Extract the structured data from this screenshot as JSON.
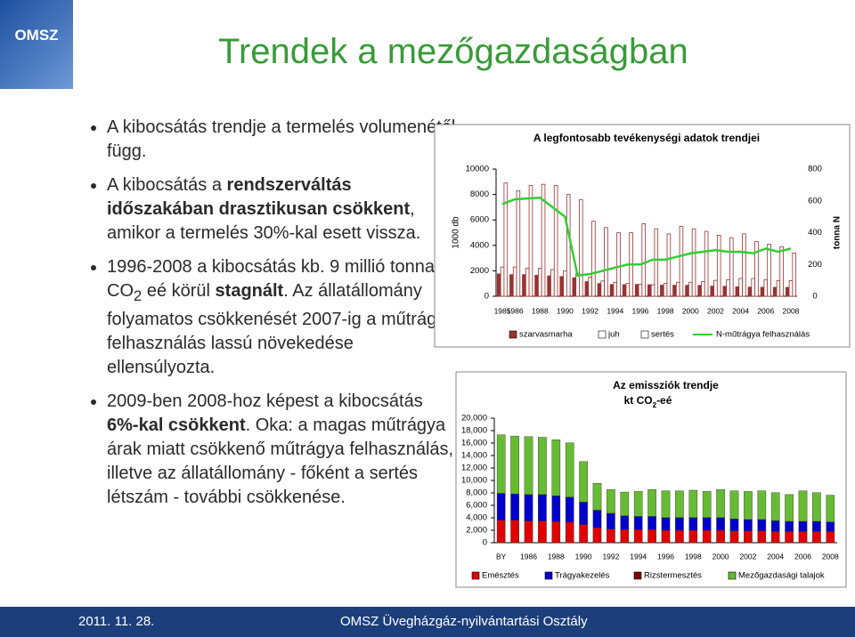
{
  "logo": "OMSZ",
  "title": "Trendek a mezőgazdaságban",
  "bullets": [
    [
      {
        "text": "A kibocsátás trendje a termelés volumenétől függ."
      }
    ],
    [
      {
        "text": "A kibocsátás a "
      },
      {
        "text": "rendszerváltás időszakában drasztikusan csökkent",
        "bold": true
      },
      {
        "text": ", amikor a termelés 30%-kal esett vissza."
      }
    ],
    [
      {
        "text": "1996-2008 a kibocsátás kb. 9 millió tonna CO"
      },
      {
        "text": "2",
        "sub": true
      },
      {
        "text": " eé körül "
      },
      {
        "text": "stagnált",
        "bold": true
      },
      {
        "text": ". Az állatállomány folyamatos csökkenését 2007-ig a műtrágya felhasználás lassú növekedése ellensúlyozta."
      }
    ],
    [
      {
        "text": "2009-ben 2008-hoz képest a kibocsátás "
      },
      {
        "text": "6%-kal csökkent",
        "bold": true
      },
      {
        "text": ". Oka: a magas műtrágya árak miatt csökkenő műtrágya felhasználás, illetve az állatállomány - főként a sertés létszám - további csökkenése."
      }
    ]
  ],
  "footer": {
    "date": "2011. 11. 28.",
    "org": "OMSZ Üvegházgáz-nyilvántartási Osztály"
  },
  "chart_data": [
    {
      "type": "bar",
      "title": "A legfontosabb tevékenységi adatok trendjei",
      "y_label": "1000 db",
      "y2_label": "tonna N",
      "categories": [
        "1985",
        "1986",
        null,
        "1988",
        null,
        "1990",
        null,
        "1992",
        null,
        "1994",
        null,
        "1996",
        null,
        "1998",
        null,
        "2000",
        null,
        "2002",
        null,
        "2004",
        null,
        "2006",
        null,
        "2008"
      ],
      "series": [
        {
          "name": "szarvasmarha",
          "color": "#993333",
          "values": [
            1750,
            1700,
            1700,
            1650,
            1600,
            1550,
            1450,
            1150,
            1000,
            920,
            910,
            930,
            910,
            870,
            870,
            860,
            850,
            800,
            780,
            740,
            720,
            710,
            700,
            700
          ]
        },
        {
          "name": "juh",
          "color": "#ffffff",
          "values": [
            2300,
            2300,
            2200,
            2200,
            2100,
            2000,
            1800,
            1500,
            1200,
            1100,
            1000,
            950,
            900,
            1000,
            1100,
            1100,
            1150,
            1250,
            1300,
            1400,
            1400,
            1300,
            1230,
            1230
          ]
        },
        {
          "name": "sertés",
          "color": "#ffffff",
          "values": [
            8900,
            8300,
            8700,
            8800,
            8700,
            8000,
            7600,
            5900,
            5400,
            5000,
            5000,
            5700,
            5300,
            4900,
            5500,
            5300,
            5100,
            4800,
            4600,
            4900,
            4300,
            4100,
            3900,
            3400
          ]
        },
        {
          "name": "N-műtrágya felhasználás",
          "color": "#33cc33",
          "axis": "y2",
          "values": [
            580,
            610,
            615,
            620,
            560,
            500,
            130,
            140,
            160,
            180,
            200,
            200,
            230,
            230,
            250,
            270,
            280,
            290,
            280,
            280,
            270,
            300,
            280,
            300
          ]
        }
      ],
      "ylim": [
        0,
        10000
      ],
      "yticks": [
        0,
        2000,
        4000,
        6000,
        8000,
        10000
      ],
      "y2lim": [
        0,
        800
      ],
      "y2ticks": [
        0,
        200,
        400,
        600,
        800
      ]
    },
    {
      "type": "stacked_bar",
      "title": "Az emissziók trendje",
      "subtitle": [
        {
          "text": "kt CO"
        },
        {
          "text": "2",
          "sub": true
        },
        {
          "text": "-eé"
        }
      ],
      "categories": [
        "BY",
        null,
        "1986",
        null,
        "1988",
        null,
        "1990",
        null,
        "1992",
        null,
        "1994",
        null,
        "1996",
        null,
        "1998",
        null,
        "2000",
        null,
        "2002",
        null,
        "2004",
        null,
        "2006",
        null,
        "2008"
      ],
      "series": [
        {
          "name": "Emésztés",
          "color": "#e00000",
          "values": [
            3600,
            3600,
            3500,
            3500,
            3400,
            3300,
            2900,
            2400,
            2200,
            2100,
            2100,
            2100,
            2000,
            2000,
            2000,
            2000,
            2000,
            1900,
            1900,
            1900,
            1800,
            1800,
            1800,
            1800,
            1800
          ]
        },
        {
          "name": "Trágyakezelés",
          "color": "#0000cc",
          "values": [
            4300,
            4200,
            4200,
            4200,
            4100,
            4000,
            3600,
            2800,
            2500,
            2200,
            2100,
            2100,
            2000,
            2000,
            2000,
            2000,
            2000,
            1900,
            1800,
            1800,
            1700,
            1600,
            1600,
            1600,
            1500
          ]
        },
        {
          "name": "Rizstermesztés",
          "color": "#800000",
          "values": [
            30,
            30,
            30,
            30,
            30,
            30,
            30,
            30,
            30,
            30,
            30,
            30,
            30,
            30,
            30,
            30,
            30,
            30,
            30,
            30,
            30,
            30,
            30,
            30,
            30
          ]
        },
        {
          "name": "Mezőgazdasági talajok",
          "color": "#66bb33",
          "values": [
            9400,
            9300,
            9300,
            9200,
            9000,
            8700,
            6500,
            4300,
            3800,
            3800,
            4000,
            4300,
            4300,
            4300,
            4400,
            4200,
            4500,
            4500,
            4500,
            4600,
            4500,
            4300,
            4900,
            4600,
            4300
          ]
        }
      ],
      "ylim": [
        0,
        20000
      ],
      "yticks": [
        0,
        {
          "value": 2000,
          "label": "2,000"
        },
        {
          "value": 4000,
          "label": "4,000"
        },
        {
          "value": 6000,
          "label": "6,000"
        },
        {
          "value": 8000,
          "label": "8,000"
        },
        {
          "value": 10000,
          "label": "10,000"
        },
        {
          "value": 12000,
          "label": "12,000"
        },
        {
          "value": 14000,
          "label": "14,000"
        },
        {
          "value": 16000,
          "label": "16,000"
        },
        {
          "value": 18000,
          "label": "18,000"
        },
        {
          "value": 20000,
          "label": "20,000"
        }
      ]
    }
  ]
}
